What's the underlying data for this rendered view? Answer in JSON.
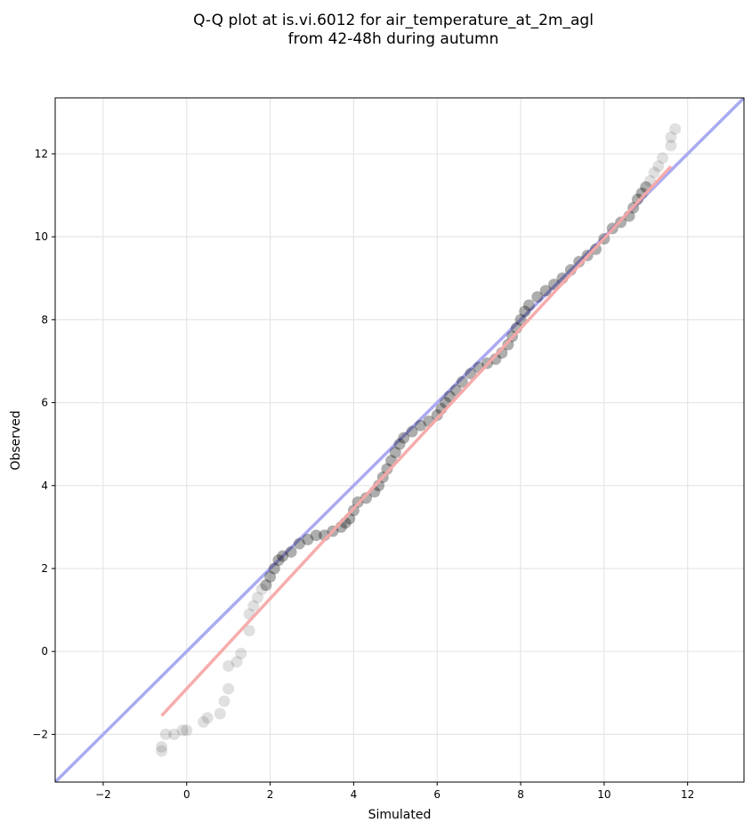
{
  "chart_data": {
    "type": "scatter",
    "title_lines": [
      "Q-Q plot at is.vi.6012 for air_temperature_at_2m_agl",
      "from 42-48h during autumn"
    ],
    "xlabel": "Simulated",
    "ylabel": "Observed",
    "xlim": [
      -3.15,
      13.35
    ],
    "ylim": [
      -3.15,
      13.35
    ],
    "xticks": [
      -2,
      0,
      2,
      4,
      6,
      8,
      10,
      12
    ],
    "yticks": [
      -2,
      0,
      2,
      4,
      6,
      8,
      10,
      12
    ],
    "xtick_labels": [
      "−2",
      "0",
      "2",
      "4",
      "6",
      "8",
      "10",
      "12"
    ],
    "ytick_labels": [
      "−2",
      "0",
      "2",
      "4",
      "6",
      "8",
      "10",
      "12"
    ],
    "grid": true,
    "identity_line_color": "#aaaaf2",
    "fit_line_color": "#f7a8a8",
    "fit_line": [
      [
        -0.6,
        -1.55
      ],
      [
        11.6,
        11.7
      ]
    ],
    "marker_color": "#000000",
    "points": [
      [
        -0.6,
        -2.4
      ],
      [
        -0.6,
        -2.3
      ],
      [
        -0.5,
        -2.0
      ],
      [
        -0.3,
        -2.0
      ],
      [
        -0.1,
        -1.9
      ],
      [
        0.0,
        -1.9
      ],
      [
        0.4,
        -1.7
      ],
      [
        0.5,
        -1.6
      ],
      [
        0.8,
        -1.5
      ],
      [
        0.9,
        -1.2
      ],
      [
        1.0,
        -0.9
      ],
      [
        1.0,
        -0.35
      ],
      [
        1.2,
        -0.25
      ],
      [
        1.3,
        -0.05
      ],
      [
        1.5,
        0.5
      ],
      [
        1.5,
        0.9
      ],
      [
        1.6,
        1.1
      ],
      [
        1.7,
        1.3
      ],
      [
        1.8,
        1.5
      ],
      [
        1.9,
        1.6
      ],
      [
        2.0,
        1.8
      ],
      [
        2.1,
        2.0
      ],
      [
        2.2,
        2.2
      ],
      [
        2.3,
        2.3
      ],
      [
        2.5,
        2.4
      ],
      [
        2.7,
        2.6
      ],
      [
        2.9,
        2.7
      ],
      [
        3.1,
        2.8
      ],
      [
        3.3,
        2.8
      ],
      [
        3.5,
        2.9
      ],
      [
        3.7,
        3.0
      ],
      [
        3.8,
        3.1
      ],
      [
        3.9,
        3.2
      ],
      [
        4.0,
        3.4
      ],
      [
        4.1,
        3.6
      ],
      [
        4.3,
        3.7
      ],
      [
        4.5,
        3.85
      ],
      [
        4.6,
        4.0
      ],
      [
        4.7,
        4.2
      ],
      [
        4.8,
        4.4
      ],
      [
        4.9,
        4.6
      ],
      [
        5.0,
        4.8
      ],
      [
        5.1,
        5.0
      ],
      [
        5.2,
        5.15
      ],
      [
        5.4,
        5.3
      ],
      [
        5.6,
        5.45
      ],
      [
        5.8,
        5.55
      ],
      [
        6.0,
        5.7
      ],
      [
        6.1,
        5.85
      ],
      [
        6.2,
        6.0
      ],
      [
        6.3,
        6.15
      ],
      [
        6.45,
        6.3
      ],
      [
        6.6,
        6.5
      ],
      [
        6.8,
        6.7
      ],
      [
        7.0,
        6.85
      ],
      [
        7.2,
        6.95
      ],
      [
        7.4,
        7.05
      ],
      [
        7.55,
        7.2
      ],
      [
        7.7,
        7.4
      ],
      [
        7.8,
        7.6
      ],
      [
        7.9,
        7.8
      ],
      [
        8.0,
        8.0
      ],
      [
        8.1,
        8.2
      ],
      [
        8.2,
        8.35
      ],
      [
        8.4,
        8.55
      ],
      [
        8.6,
        8.7
      ],
      [
        8.8,
        8.85
      ],
      [
        9.0,
        9.0
      ],
      [
        9.2,
        9.2
      ],
      [
        9.4,
        9.4
      ],
      [
        9.6,
        9.55
      ],
      [
        9.8,
        9.7
      ],
      [
        10.0,
        9.95
      ],
      [
        10.2,
        10.2
      ],
      [
        10.4,
        10.35
      ],
      [
        10.6,
        10.5
      ],
      [
        10.7,
        10.7
      ],
      [
        10.8,
        10.9
      ],
      [
        10.9,
        11.05
      ],
      [
        11.0,
        11.2
      ],
      [
        11.1,
        11.35
      ],
      [
        11.2,
        11.55
      ],
      [
        11.3,
        11.7
      ],
      [
        11.4,
        11.9
      ],
      [
        11.6,
        12.2
      ],
      [
        11.6,
        12.4
      ],
      [
        11.7,
        12.6
      ]
    ]
  }
}
